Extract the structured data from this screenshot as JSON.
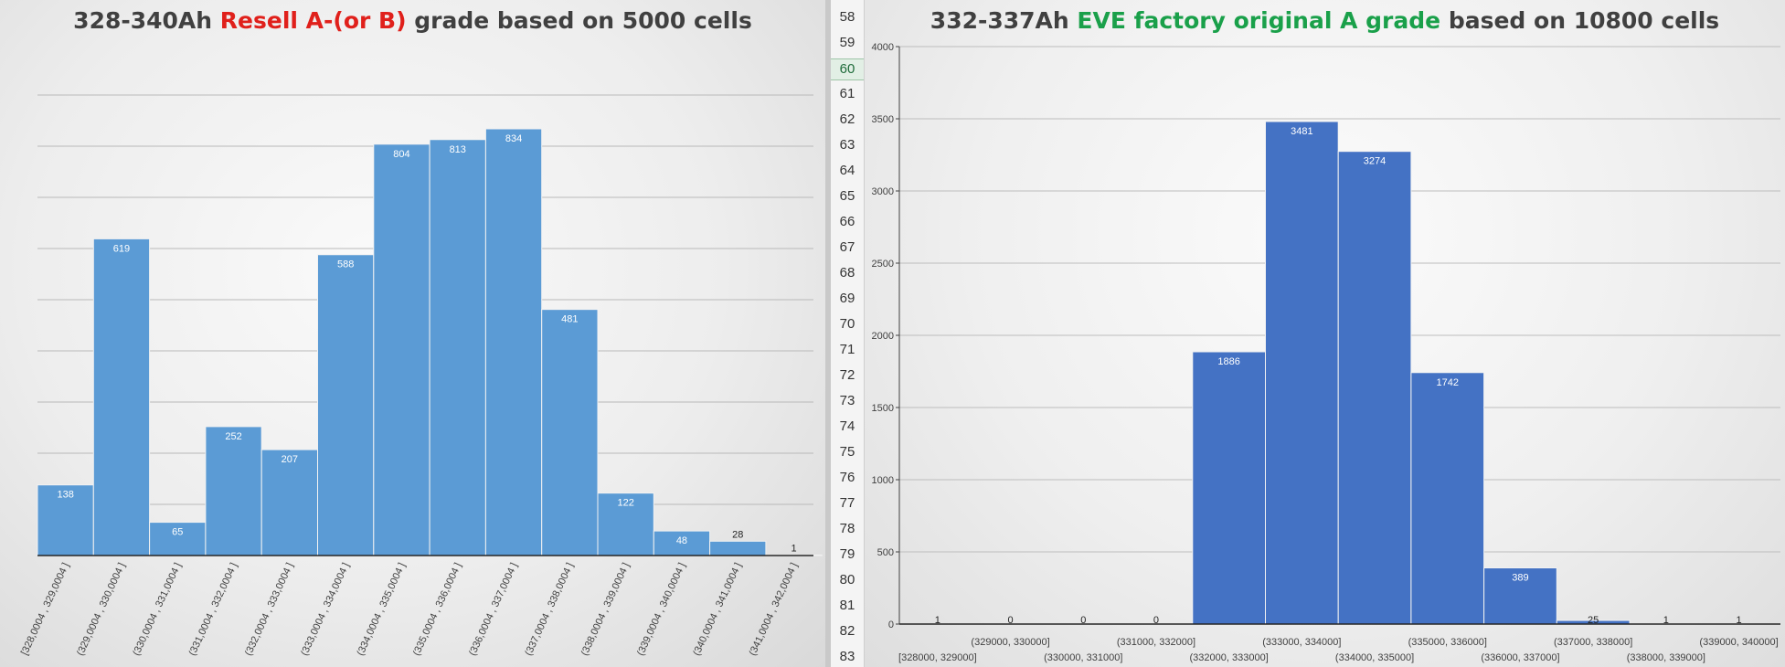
{
  "left_chart": {
    "title": {
      "part1": "328-340Ah ",
      "part2": "Resell A-(or B)",
      "part3": " grade based on 5000 cells"
    },
    "highlight_color": "#e0201b",
    "bar_color": "#5b9bd5",
    "chart_data": {
      "type": "bar",
      "categories": [
        "[328,0004 , 329,0004 ]",
        "(329,0004 , 330,0004 ]",
        "(330,0004 , 331,0004 ]",
        "(331,0004 , 332,0004 ]",
        "(332,0004 , 333,0004 ]",
        "(333,0004 , 334,0004 ]",
        "(334,0004 , 335,0004 ]",
        "(335,0004 , 336,0004 ]",
        "(336,0004 , 337,0004 ]",
        "(337,0004 , 338,0004 ]",
        "(338,0004 , 339,0004 ]",
        "(339,0004 , 340,0004 ]",
        "(340,0004 , 341,0004 ]",
        "(341,0004 , 342,0004 ]"
      ],
      "values": [
        138,
        619,
        65,
        252,
        207,
        588,
        804,
        813,
        834,
        481,
        122,
        48,
        28,
        1
      ],
      "ylim": [
        0,
        900
      ],
      "grid": true,
      "legend": "none"
    }
  },
  "right_chart": {
    "title": {
      "part1": "332-337Ah ",
      "part2": "EVE factory original A grade",
      "part3": " based on 10800 cells"
    },
    "highlight_color": "#1aa04a",
    "bar_color": "#4472c4",
    "chart_data": {
      "type": "bar",
      "categories": [
        "[328000, 329000]",
        "(329000, 330000]",
        "(330000, 331000]",
        "(331000, 332000]",
        "(332000, 333000]",
        "(333000, 334000]",
        "(334000, 335000]",
        "(335000, 336000]",
        "(336000, 337000]",
        "(337000, 338000]",
        "(338000, 339000]",
        "(339000, 340000]"
      ],
      "values": [
        1,
        0,
        0,
        0,
        1886,
        3481,
        3274,
        1742,
        389,
        25,
        1,
        1
      ],
      "yticks": [
        "0",
        "500",
        "1000",
        "1500",
        "2000",
        "2500",
        "3000",
        "3500",
        "4000"
      ],
      "ylim": [
        0,
        4000
      ],
      "grid": true,
      "legend": "none"
    }
  },
  "spreadsheet": {
    "row_numbers": [
      "58",
      "59",
      "60",
      "61",
      "62",
      "63",
      "64",
      "65",
      "66",
      "67",
      "68",
      "69",
      "70",
      "71",
      "72",
      "73",
      "74",
      "75",
      "76",
      "77",
      "78",
      "79",
      "80",
      "81",
      "82",
      "83"
    ],
    "active_row": "60"
  }
}
